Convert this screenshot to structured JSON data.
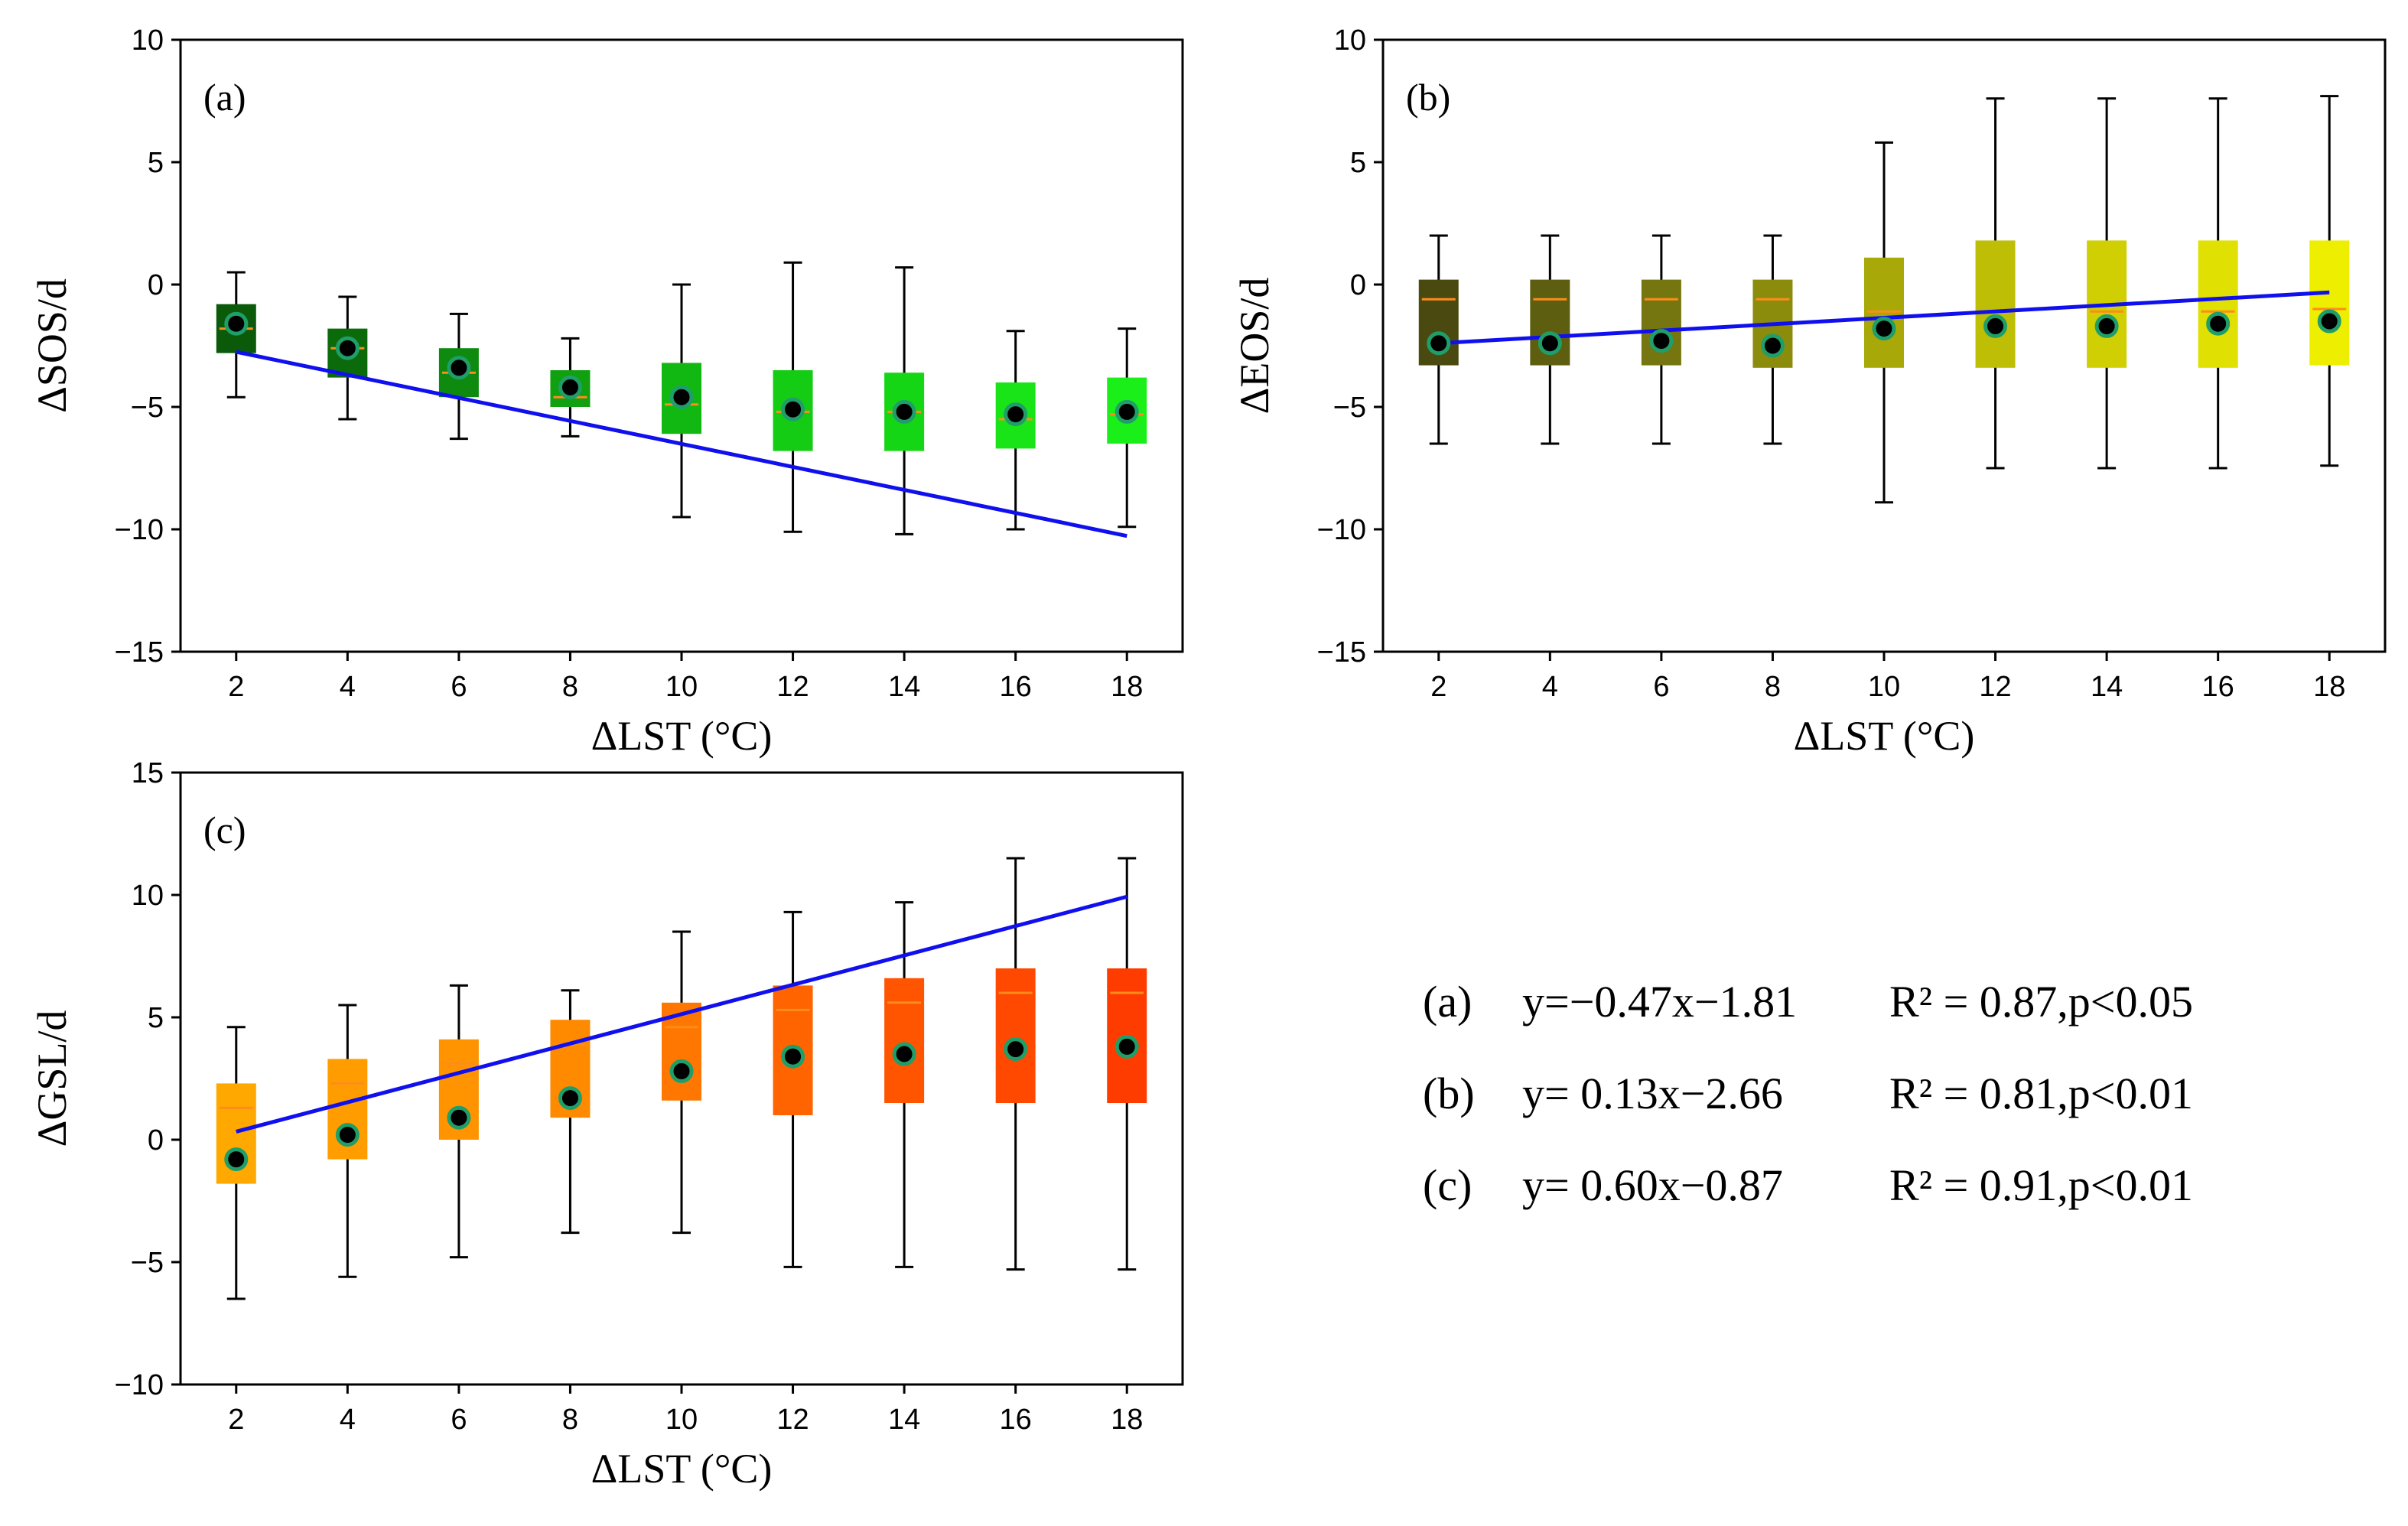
{
  "chart_data": [
    {
      "type": "box",
      "panel": "(a)",
      "xlabel": "ΔLST (°C)",
      "ylabel": "ΔSOS/d",
      "ylim": [
        -15,
        10
      ],
      "yticks": [
        10,
        5,
        0,
        -5,
        -10,
        -15
      ],
      "ytick_labels": [
        "10",
        "5",
        "0",
        "−5",
        "−10",
        "−15"
      ],
      "xticks": [
        2,
        4,
        6,
        8,
        10,
        12,
        14,
        16,
        18
      ],
      "boxes": [
        {
          "x": 2,
          "whisker_low": -4.6,
          "q1": -2.8,
          "median": -1.8,
          "q3": -0.8,
          "whisker_high": 0.5,
          "mean": -1.6,
          "color": "#0a5a0a"
        },
        {
          "x": 4,
          "whisker_low": -5.5,
          "q1": -3.8,
          "median": -2.6,
          "q3": -1.8,
          "whisker_high": -0.5,
          "mean": -2.6,
          "color": "#0b6b0b"
        },
        {
          "x": 6,
          "whisker_low": -6.3,
          "q1": -4.6,
          "median": -3.6,
          "q3": -2.6,
          "whisker_high": -1.2,
          "mean": -3.4,
          "color": "#0e8a0e"
        },
        {
          "x": 8,
          "whisker_low": -6.2,
          "q1": -5.0,
          "median": -4.6,
          "q3": -3.5,
          "whisker_high": -2.2,
          "mean": -4.2,
          "color": "#10a010"
        },
        {
          "x": 10,
          "whisker_low": -9.5,
          "q1": -6.1,
          "median": -4.9,
          "q3": -3.2,
          "whisker_high": 0.0,
          "mean": -4.6,
          "color": "#12b812"
        },
        {
          "x": 12,
          "whisker_low": -10.1,
          "q1": -6.8,
          "median": -5.2,
          "q3": -3.5,
          "whisker_high": 0.9,
          "mean": -5.1,
          "color": "#14cc14"
        },
        {
          "x": 14,
          "whisker_low": -10.2,
          "q1": -6.8,
          "median": -5.2,
          "q3": -3.6,
          "whisker_high": 0.7,
          "mean": -5.2,
          "color": "#15d615"
        },
        {
          "x": 16,
          "whisker_low": -10.0,
          "q1": -6.7,
          "median": -5.5,
          "q3": -4.0,
          "whisker_high": -1.9,
          "mean": -5.3,
          "color": "#18e418"
        },
        {
          "x": 18,
          "whisker_low": -9.9,
          "q1": -6.5,
          "median": -5.3,
          "q3": -3.8,
          "whisker_high": -1.8,
          "mean": -5.2,
          "color": "#1aef1a"
        }
      ],
      "fit": {
        "slope": -0.47,
        "intercept": -1.81,
        "color": "#1010ee"
      }
    },
    {
      "type": "box",
      "panel": "(b)",
      "xlabel": "ΔLST (°C)",
      "ylabel": "ΔEOS/d",
      "ylim": [
        -15,
        10
      ],
      "yticks": [
        10,
        5,
        0,
        -5,
        -10,
        -15
      ],
      "ytick_labels": [
        "10",
        "5",
        "0",
        "−5",
        "−10",
        "−15"
      ],
      "xticks": [
        2,
        4,
        6,
        8,
        10,
        12,
        14,
        16,
        18
      ],
      "boxes": [
        {
          "x": 2,
          "whisker_low": -6.5,
          "q1": -3.3,
          "median": -0.6,
          "q3": 0.2,
          "whisker_high": 2.0,
          "mean": -2.4,
          "color": "#4a4a10"
        },
        {
          "x": 4,
          "whisker_low": -6.5,
          "q1": -3.3,
          "median": -0.6,
          "q3": 0.2,
          "whisker_high": 2.0,
          "mean": -2.4,
          "color": "#5e5e10"
        },
        {
          "x": 6,
          "whisker_low": -6.5,
          "q1": -3.3,
          "median": -0.6,
          "q3": 0.2,
          "whisker_high": 2.0,
          "mean": -2.3,
          "color": "#767610"
        },
        {
          "x": 8,
          "whisker_low": -6.5,
          "q1": -3.4,
          "median": -0.6,
          "q3": 0.2,
          "whisker_high": 2.0,
          "mean": -2.5,
          "color": "#8c8c0c"
        },
        {
          "x": 10,
          "whisker_low": -8.9,
          "q1": -3.4,
          "median": -1.1,
          "q3": 1.1,
          "whisker_high": 5.8,
          "mean": -1.8,
          "color": "#a8a808"
        },
        {
          "x": 12,
          "whisker_low": -7.5,
          "q1": -3.4,
          "median": -1.1,
          "q3": 1.8,
          "whisker_high": 7.6,
          "mean": -1.7,
          "color": "#bebe06"
        },
        {
          "x": 14,
          "whisker_low": -7.5,
          "q1": -3.4,
          "median": -1.1,
          "q3": 1.8,
          "whisker_high": 7.6,
          "mean": -1.7,
          "color": "#cfcf04"
        },
        {
          "x": 16,
          "whisker_low": -7.5,
          "q1": -3.4,
          "median": -1.1,
          "q3": 1.8,
          "whisker_high": 7.6,
          "mean": -1.6,
          "color": "#e0e002"
        },
        {
          "x": 18,
          "whisker_low": -7.4,
          "q1": -3.3,
          "median": -1.0,
          "q3": 1.8,
          "whisker_high": 7.7,
          "mean": -1.5,
          "color": "#eeee00"
        }
      ],
      "fit": {
        "slope": 0.13,
        "intercept": -2.66,
        "color": "#1010ee"
      }
    },
    {
      "type": "box",
      "panel": "(c)",
      "xlabel": "ΔLST (°C)",
      "ylabel": "ΔGSL/d",
      "ylim": [
        -10,
        15
      ],
      "yticks": [
        15,
        10,
        5,
        0,
        -5,
        -10
      ],
      "ytick_labels": [
        "15",
        "10",
        "5",
        "0",
        "−5",
        "−10"
      ],
      "xticks": [
        2,
        4,
        6,
        8,
        10,
        12,
        14,
        16,
        18
      ],
      "boxes": [
        {
          "x": 2,
          "whisker_low": -6.5,
          "q1": -1.8,
          "median": 1.3,
          "q3": 2.3,
          "whisker_high": 4.6,
          "mean": -0.8,
          "color": "#ffa800"
        },
        {
          "x": 4,
          "whisker_low": -5.6,
          "q1": -0.8,
          "median": 2.3,
          "q3": 3.3,
          "whisker_high": 5.5,
          "mean": 0.2,
          "color": "#ff9d00"
        },
        {
          "x": 6,
          "whisker_low": -4.8,
          "q1": 0.0,
          "median": 3.1,
          "q3": 4.1,
          "whisker_high": 6.3,
          "mean": 0.9,
          "color": "#ff9400"
        },
        {
          "x": 8,
          "whisker_low": -3.8,
          "q1": 0.9,
          "median": 3.9,
          "q3": 4.9,
          "whisker_high": 6.1,
          "mean": 1.7,
          "color": "#ff8a00"
        },
        {
          "x": 10,
          "whisker_low": -3.8,
          "q1": 1.6,
          "median": 4.6,
          "q3": 5.6,
          "whisker_high": 8.5,
          "mean": 2.8,
          "color": "#ff7700"
        },
        {
          "x": 12,
          "whisker_low": -5.2,
          "q1": 1.0,
          "median": 5.3,
          "q3": 6.3,
          "whisker_high": 9.3,
          "mean": 3.4,
          "color": "#ff6400"
        },
        {
          "x": 14,
          "whisker_low": -5.2,
          "q1": 1.5,
          "median": 5.6,
          "q3": 6.6,
          "whisker_high": 9.7,
          "mean": 3.5,
          "color": "#ff5400"
        },
        {
          "x": 16,
          "whisker_low": -5.3,
          "q1": 1.5,
          "median": 6.0,
          "q3": 7.0,
          "whisker_high": 11.5,
          "mean": 3.7,
          "color": "#ff4800"
        },
        {
          "x": 18,
          "whisker_low": -5.3,
          "q1": 1.5,
          "median": 6.0,
          "q3": 7.0,
          "whisker_high": 11.5,
          "mean": 3.8,
          "color": "#ff3c00"
        }
      ],
      "fit": {
        "slope": 0.6,
        "intercept": -0.87,
        "color": "#1010ee"
      }
    }
  ],
  "equations": [
    {
      "tag": "(a)",
      "formula": "y=−0.47x−1.81",
      "stats": "R² = 0.87,p<0.05"
    },
    {
      "tag": "(b)",
      "formula": "y= 0.13x−2.66",
      "stats": "R² = 0.81,p<0.01"
    },
    {
      "tag": "(c)",
      "formula": "y= 0.60x−0.87",
      "stats": "R² = 0.91,p<0.01"
    }
  ],
  "style": {
    "median_color": "#ff8c1a",
    "mean_fill": "#000000",
    "mean_edge": "#1f9e6a",
    "axis_color": "#000000"
  }
}
